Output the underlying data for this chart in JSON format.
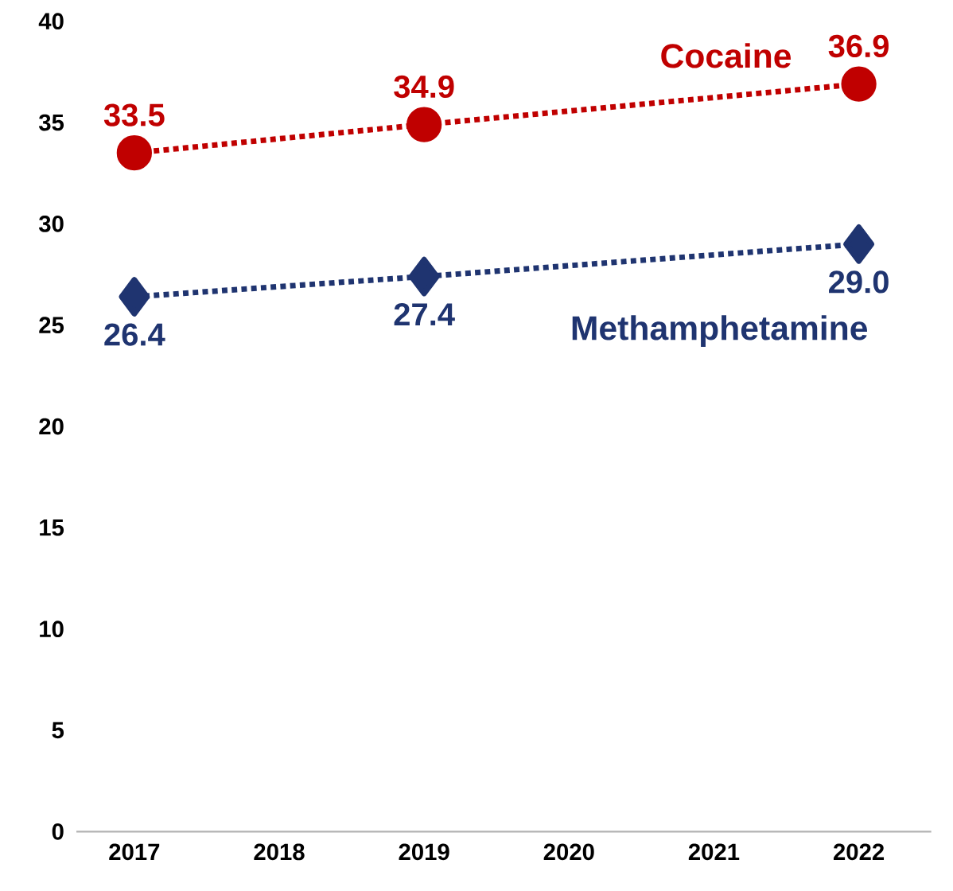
{
  "chart_data": {
    "type": "line",
    "x": [
      2017,
      2019,
      2022
    ],
    "series": [
      {
        "name": "Cocaine",
        "color": "#c00000",
        "values": [
          33.5,
          34.9,
          36.9
        ],
        "value_labels": [
          "33.5",
          "34.9",
          "36.9"
        ],
        "marker": "circle"
      },
      {
        "name": "Methamphetamine",
        "color": "#1f3470",
        "values": [
          26.4,
          27.4,
          29.0
        ],
        "value_labels": [
          "26.4",
          "27.4",
          "29.0"
        ],
        "marker": "diamond"
      }
    ],
    "xlim": [
      2016.6,
      2022.5
    ],
    "xticks": [
      2017,
      2018,
      2019,
      2020,
      2021,
      2022
    ],
    "ylim": [
      0,
      40
    ],
    "yticks": [
      0,
      5,
      10,
      15,
      20,
      25,
      30,
      35,
      40
    ],
    "line_style": "dotted",
    "grid": false
  }
}
